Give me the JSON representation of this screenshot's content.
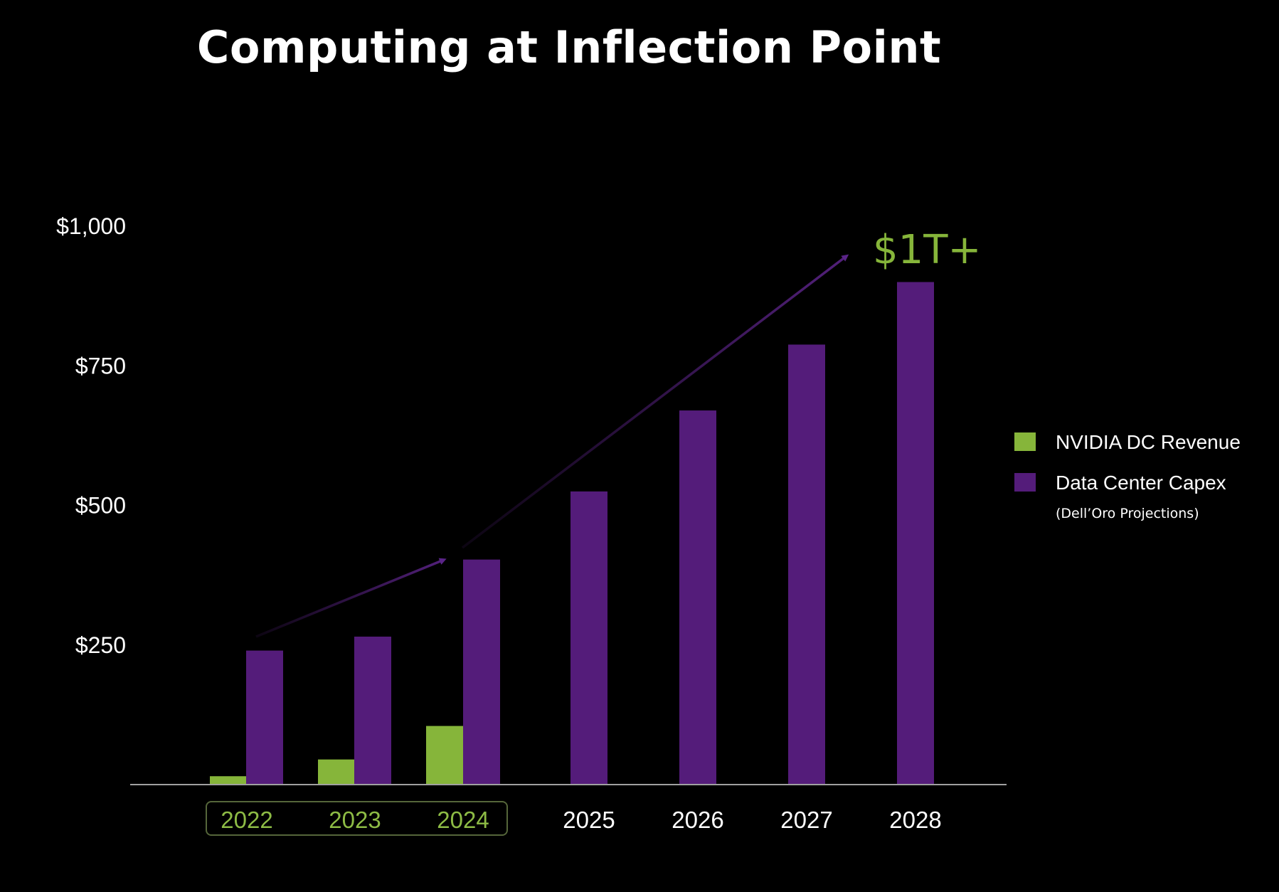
{
  "chart_data": {
    "type": "bar",
    "title": "Computing at Inflection Point",
    "categories": [
      "2022",
      "2023",
      "2024",
      "2025",
      "2026",
      "2027",
      "2028"
    ],
    "highlighted_categories": [
      "2022",
      "2023",
      "2024"
    ],
    "series": [
      {
        "name": "NVIDIA DC Revenue",
        "color": "#86b53a",
        "values": [
          15,
          45,
          105,
          null,
          null,
          null,
          null
        ]
      },
      {
        "name": "Data Center Capex",
        "note": "(Dell’Oro Projections)",
        "color": "#541c7a",
        "values": [
          240,
          265,
          403,
          525,
          670,
          788,
          900
        ]
      }
    ],
    "yticks": [
      {
        "value": 250,
        "label": "$250"
      },
      {
        "value": 500,
        "label": "$500"
      },
      {
        "value": 750,
        "label": "$750"
      },
      {
        "value": 1000,
        "label": "$1,000"
      }
    ],
    "ylim": [
      0,
      1000
    ],
    "xlabel": "",
    "ylabel": "",
    "legend_position": "right",
    "annotation": {
      "text": "$1T+",
      "color": "#86b53a"
    },
    "colors": {
      "background": "#000000",
      "axis": "#a0a0a0",
      "highlight_label": "#8dbb45",
      "highlight_box": "#55663a",
      "normal_label": "#ffffff",
      "trend_arrow": "#52207a"
    }
  }
}
